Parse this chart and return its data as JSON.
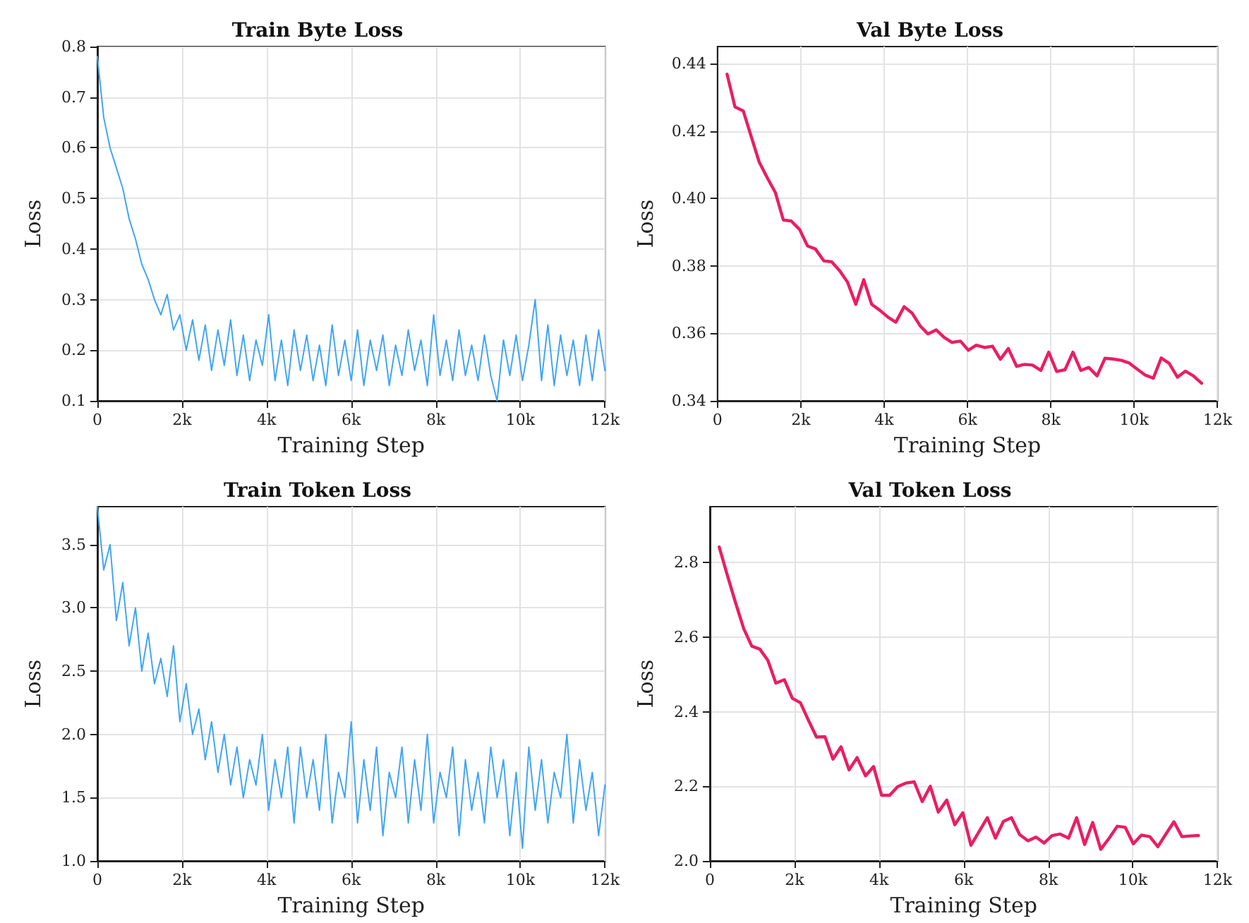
{
  "chart_data": [
    {
      "type": "line",
      "title": "Train Byte Loss",
      "xlabel": "Training Step",
      "ylabel": "Loss",
      "grid": true,
      "line_style": "solid",
      "marker": "none",
      "xlim": [
        0,
        12000
      ],
      "xticks": [
        {
          "value": 0,
          "label": "0"
        },
        {
          "value": 2000,
          "label": "2k"
        },
        {
          "value": 4000,
          "label": "4k"
        },
        {
          "value": 6000,
          "label": "6k"
        },
        {
          "value": 8000,
          "label": "8k"
        },
        {
          "value": 10000,
          "label": "10k"
        },
        {
          "value": 12000,
          "label": "12k"
        }
      ],
      "ylim": [
        0.1,
        0.8
      ],
      "yticks": [
        0.1,
        0.2,
        0.3,
        0.4,
        0.5,
        0.6,
        0.7,
        0.8
      ],
      "x": [
        0,
        150,
        300,
        450,
        600,
        750,
        900,
        1050,
        1200,
        1350,
        1500,
        1650,
        1800,
        1950,
        2100,
        2250,
        2400,
        2550,
        2700,
        2850,
        3000,
        3150,
        3300,
        3450,
        3600,
        3750,
        3900,
        4050,
        4200,
        4350,
        4500,
        4650,
        4800,
        4950,
        5100,
        5250,
        5400,
        5550,
        5700,
        5850,
        6000,
        6150,
        6300,
        6450,
        6600,
        6750,
        6900,
        7050,
        7200,
        7350,
        7500,
        7650,
        7800,
        7950,
        8100,
        8250,
        8400,
        8550,
        8700,
        8850,
        9000,
        9150,
        9300,
        9450,
        9600,
        9750,
        9900,
        10050,
        10200,
        10350,
        10500,
        10650,
        10800,
        10950,
        11100,
        11250,
        11400,
        11550,
        11700,
        11850,
        12000
      ],
      "series": [
        {
          "color": "#42a5f5",
          "values": [
            0.78,
            0.66,
            0.6,
            0.56,
            0.52,
            0.46,
            0.42,
            0.37,
            0.34,
            0.3,
            0.27,
            0.31,
            0.24,
            0.27,
            0.2,
            0.26,
            0.18,
            0.25,
            0.16,
            0.24,
            0.17,
            0.26,
            0.15,
            0.23,
            0.14,
            0.22,
            0.17,
            0.27,
            0.14,
            0.22,
            0.13,
            0.24,
            0.16,
            0.23,
            0.14,
            0.21,
            0.13,
            0.25,
            0.15,
            0.22,
            0.14,
            0.24,
            0.13,
            0.22,
            0.16,
            0.23,
            0.13,
            0.21,
            0.15,
            0.24,
            0.16,
            0.22,
            0.13,
            0.27,
            0.15,
            0.22,
            0.14,
            0.24,
            0.15,
            0.21,
            0.14,
            0.23,
            0.15,
            0.1,
            0.22,
            0.15,
            0.23,
            0.14,
            0.21,
            0.3,
            0.14,
            0.25,
            0.13,
            0.23,
            0.15,
            0.22,
            0.13,
            0.23,
            0.14,
            0.24,
            0.16
          ]
        }
      ]
    },
    {
      "type": "line",
      "title": "Val Byte Loss",
      "xlabel": "Training Step",
      "ylabel": "Loss",
      "grid": true,
      "line_style": "solid",
      "marker": "none",
      "xlim": [
        0,
        12000
      ],
      "xticks": [
        {
          "value": 0,
          "label": "0"
        },
        {
          "value": 2000,
          "label": "2k"
        },
        {
          "value": 4000,
          "label": "4k"
        },
        {
          "value": 6000,
          "label": "6k"
        },
        {
          "value": 8000,
          "label": "8k"
        },
        {
          "value": 10000,
          "label": "10k"
        },
        {
          "value": 12000,
          "label": "12k"
        }
      ],
      "ylim": [
        0.34,
        0.445
      ],
      "yticks": [
        {
          "value": 0.34,
          "label": "0.34"
        },
        {
          "value": 0.36,
          "label": "0.36"
        },
        {
          "value": 0.38,
          "label": "0.38"
        },
        {
          "value": 0.4,
          "label": "0.40"
        },
        {
          "value": 0.42,
          "label": "0.42"
        },
        {
          "value": 0.44,
          "label": "0.44"
        }
      ],
      "x": [
        230,
        420,
        620,
        810,
        1000,
        1200,
        1390,
        1580,
        1770,
        1970,
        2160,
        2350,
        2550,
        2740,
        2930,
        3120,
        3320,
        3510,
        3700,
        3900,
        4090,
        4280,
        4480,
        4670,
        4860,
        5050,
        5250,
        5440,
        5630,
        5830,
        6020,
        6210,
        6410,
        6600,
        6790,
        6980,
        7180,
        7370,
        7560,
        7760,
        7950,
        8140,
        8340,
        8530,
        8720,
        8910,
        9110,
        9300,
        9490,
        9690,
        9880,
        10070,
        10270,
        10460,
        10650,
        10840,
        11040,
        11230,
        11420,
        11620
      ],
      "series": [
        {
          "color": "#e91e63",
          "values": [
            0.4368,
            0.4271,
            0.4259,
            0.4183,
            0.4108,
            0.406,
            0.4017,
            0.3936,
            0.3933,
            0.3908,
            0.3859,
            0.385,
            0.3815,
            0.3812,
            0.3786,
            0.3752,
            0.3686,
            0.3759,
            0.3686,
            0.3668,
            0.3648,
            0.3633,
            0.3679,
            0.366,
            0.3623,
            0.3598,
            0.361,
            0.3588,
            0.3573,
            0.3577,
            0.355,
            0.3565,
            0.3558,
            0.3562,
            0.3523,
            0.3555,
            0.3502,
            0.3508,
            0.3506,
            0.349,
            0.3544,
            0.3487,
            0.3492,
            0.3544,
            0.349,
            0.3499,
            0.3474,
            0.3526,
            0.3524,
            0.352,
            0.3512,
            0.3494,
            0.3476,
            0.3467,
            0.3527,
            0.3511,
            0.347,
            0.3488,
            0.3474,
            0.3452
          ]
        }
      ]
    },
    {
      "type": "line",
      "title": "Train Token Loss",
      "xlabel": "Training Step",
      "ylabel": "Loss",
      "grid": true,
      "line_style": "solid",
      "marker": "none",
      "xlim": [
        0,
        12000
      ],
      "xticks": [
        {
          "value": 0,
          "label": "0"
        },
        {
          "value": 2000,
          "label": "2k"
        },
        {
          "value": 4000,
          "label": "4k"
        },
        {
          "value": 6000,
          "label": "6k"
        },
        {
          "value": 8000,
          "label": "8k"
        },
        {
          "value": 10000,
          "label": "10k"
        },
        {
          "value": 12000,
          "label": "12k"
        }
      ],
      "ylim": [
        1.0,
        3.8
      ],
      "yticks": [
        {
          "value": 1,
          "label": "1.0"
        },
        1.5,
        {
          "value": 2,
          "label": "2.0"
        },
        2.5,
        {
          "value": 3,
          "label": "3.0"
        },
        3.5
      ],
      "x": [
        0,
        150,
        300,
        450,
        600,
        750,
        900,
        1050,
        1200,
        1350,
        1500,
        1650,
        1800,
        1950,
        2100,
        2250,
        2400,
        2550,
        2700,
        2850,
        3000,
        3150,
        3300,
        3450,
        3600,
        3750,
        3900,
        4050,
        4200,
        4350,
        4500,
        4650,
        4800,
        4950,
        5100,
        5250,
        5400,
        5550,
        5700,
        5850,
        6000,
        6150,
        6300,
        6450,
        6600,
        6750,
        6900,
        7050,
        7200,
        7350,
        7500,
        7650,
        7800,
        7950,
        8100,
        8250,
        8400,
        8550,
        8700,
        8850,
        9000,
        9150,
        9300,
        9450,
        9600,
        9750,
        9900,
        10050,
        10200,
        10350,
        10500,
        10650,
        10800,
        10950,
        11100,
        11250,
        11400,
        11550,
        11700,
        11850,
        12000
      ],
      "series": [
        {
          "color": "#42a5f5",
          "values": [
            3.8,
            3.3,
            3.5,
            2.9,
            3.2,
            2.7,
            3.0,
            2.5,
            2.8,
            2.4,
            2.6,
            2.3,
            2.7,
            2.1,
            2.4,
            2.0,
            2.2,
            1.8,
            2.1,
            1.7,
            2.0,
            1.6,
            1.9,
            1.5,
            1.8,
            1.6,
            2.0,
            1.4,
            1.8,
            1.5,
            1.9,
            1.3,
            1.9,
            1.5,
            1.8,
            1.4,
            2.0,
            1.3,
            1.7,
            1.5,
            2.1,
            1.3,
            1.8,
            1.4,
            1.9,
            1.2,
            1.7,
            1.5,
            1.9,
            1.3,
            1.8,
            1.4,
            2.0,
            1.3,
            1.7,
            1.5,
            1.9,
            1.2,
            1.8,
            1.4,
            1.7,
            1.3,
            1.9,
            1.5,
            1.8,
            1.2,
            1.7,
            1.1,
            1.9,
            1.4,
            1.8,
            1.3,
            1.7,
            1.5,
            2.0,
            1.3,
            1.8,
            1.4,
            1.7,
            1.2,
            1.6
          ]
        }
      ]
    },
    {
      "type": "line",
      "title": "Val Token Loss",
      "xlabel": "Training Step",
      "ylabel": "Loss",
      "grid": true,
      "line_style": "solid",
      "marker": "none",
      "xlim": [
        0,
        12000
      ],
      "xticks": [
        {
          "value": 0,
          "label": "0"
        },
        {
          "value": 2000,
          "label": "2k"
        },
        {
          "value": 4000,
          "label": "4k"
        },
        {
          "value": 6000,
          "label": "6k"
        },
        {
          "value": 8000,
          "label": "8k"
        },
        {
          "value": 10000,
          "label": "10k"
        },
        {
          "value": 12000,
          "label": "12k"
        }
      ],
      "ylim": [
        2.0,
        2.95
      ],
      "yticks": [
        {
          "value": 2,
          "label": "2.0"
        },
        2.2,
        2.4,
        2.6,
        2.8
      ],
      "x": [
        220,
        410,
        600,
        800,
        990,
        1180,
        1370,
        1560,
        1760,
        1950,
        2140,
        2330,
        2520,
        2720,
        2910,
        3100,
        3290,
        3480,
        3680,
        3870,
        4060,
        4250,
        4440,
        4640,
        4830,
        5020,
        5210,
        5400,
        5600,
        5790,
        5980,
        6170,
        6360,
        6560,
        6750,
        6940,
        7130,
        7320,
        7520,
        7710,
        7900,
        8090,
        8280,
        8480,
        8670,
        8860,
        9050,
        9240,
        9440,
        9630,
        9820,
        10010,
        10200,
        10400,
        10590,
        10780,
        10970,
        11160,
        11360,
        11550
      ],
      "series": [
        {
          "color": "#e91e63",
          "values": [
            2.842,
            2.767,
            2.695,
            2.623,
            2.576,
            2.568,
            2.538,
            2.477,
            2.486,
            2.436,
            2.424,
            2.377,
            2.332,
            2.333,
            2.273,
            2.306,
            2.244,
            2.277,
            2.228,
            2.253,
            2.176,
            2.176,
            2.199,
            2.209,
            2.212,
            2.159,
            2.2,
            2.131,
            2.163,
            2.097,
            2.129,
            2.042,
            2.078,
            2.116,
            2.061,
            2.106,
            2.116,
            2.071,
            2.054,
            2.064,
            2.048,
            2.068,
            2.072,
            2.061,
            2.116,
            2.044,
            2.103,
            2.031,
            2.061,
            2.093,
            2.09,
            2.046,
            2.069,
            2.065,
            2.038,
            2.072,
            2.105,
            2.065,
            2.067,
            2.068
          ]
        }
      ]
    }
  ]
}
